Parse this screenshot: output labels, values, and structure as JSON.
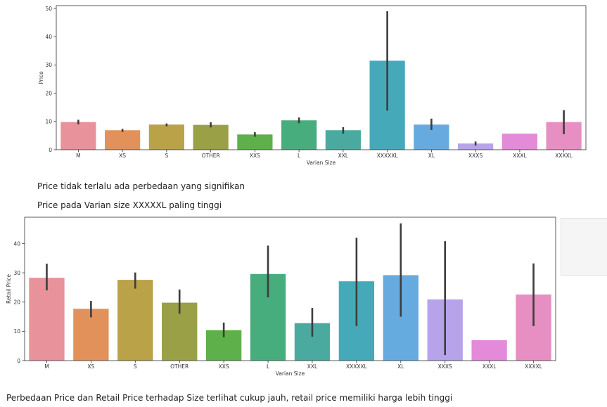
{
  "chart_data": [
    {
      "type": "bar",
      "title": "",
      "xlabel": "Varian Size",
      "ylabel": "Price",
      "ylim": [
        0,
        51
      ],
      "yticks": [
        0,
        10,
        20,
        30,
        40,
        50
      ],
      "categories": [
        "M",
        "XS",
        "S",
        "OTHER",
        "XXS",
        "L",
        "XXL",
        "XXXXXL",
        "XL",
        "XXXS",
        "XXXL",
        "XXXXL"
      ],
      "values": [
        9.8,
        6.9,
        8.9,
        8.8,
        5.4,
        10.4,
        6.9,
        31.5,
        8.9,
        2.2,
        5.7,
        9.8
      ],
      "err_low": [
        9.0,
        6.3,
        8.3,
        7.9,
        4.6,
        9.4,
        5.7,
        13.8,
        7.0,
        1.5,
        5.7,
        5.5
      ],
      "err_high": [
        10.6,
        7.4,
        9.3,
        9.7,
        6.2,
        11.4,
        8.0,
        49.0,
        11.0,
        2.9,
        5.7,
        14.0
      ],
      "colors": [
        "#e8929b",
        "#e2915a",
        "#b9a248",
        "#9aa045",
        "#5db04a",
        "#48ad7d",
        "#4aaaa0",
        "#45a9b9",
        "#66abdf",
        "#b7a3e9",
        "#e38ad9",
        "#e78fc2"
      ],
      "grid": false
    },
    {
      "type": "bar",
      "title": "",
      "xlabel": "Varian Size",
      "ylabel": "Retail Price",
      "ylim": [
        0,
        49
      ],
      "yticks": [
        0,
        10,
        20,
        30,
        40
      ],
      "categories": [
        "M",
        "XS",
        "S",
        "OTHER",
        "XXS",
        "L",
        "XXL",
        "XXXXXL",
        "XL",
        "XXXS",
        "XXXL",
        "XXXXL"
      ],
      "values": [
        28.3,
        17.7,
        27.6,
        19.8,
        10.4,
        29.6,
        12.8,
        27.1,
        29.2,
        20.9,
        7.0,
        22.6
      ],
      "err_low": [
        24.0,
        14.8,
        24.6,
        16.0,
        8.0,
        21.6,
        8.2,
        11.8,
        15.0,
        1.9,
        7.0,
        11.8
      ],
      "err_high": [
        33.1,
        20.4,
        30.1,
        24.3,
        13.0,
        39.3,
        18.0,
        42.0,
        46.9,
        40.8,
        7.0,
        33.2
      ],
      "colors": [
        "#e8929b",
        "#e2915a",
        "#b9a248",
        "#9aa045",
        "#5db04a",
        "#48ad7d",
        "#4aaaa0",
        "#45a9b9",
        "#66abdf",
        "#b7a3e9",
        "#e38ad9",
        "#e78fc2"
      ],
      "grid": false
    }
  ],
  "notes": {
    "note1": "Price tidak terlalu ada perbedaan yang signifikan",
    "note2": "Price pada Varian size XXXXXL paling tinggi",
    "note3": "Perbedaan Price dan Retail Price terhadap Size terlihat cukup jauh, retail price memiliki harga lebih tinggi"
  }
}
